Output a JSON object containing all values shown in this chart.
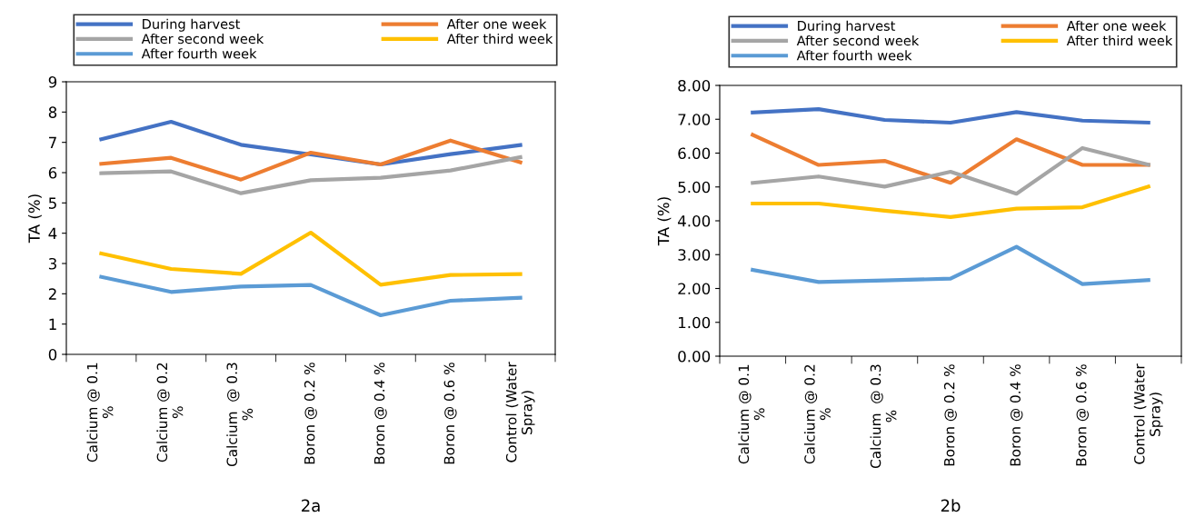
{
  "chart_data": [
    {
      "type": "line",
      "title": "2a",
      "ylabel": "TA (%)",
      "categories": [
        "Calcium @ 0.1\n%",
        "Calcium @ 0.2\n%",
        "Calcium  @ 0.3\n%",
        "Boron @ 0.2 %",
        "Boron @ 0.4 %",
        "Boron @ 0.6 %",
        "Control (Water\nSpray)"
      ],
      "ylim": [
        0,
        9
      ],
      "yticks": [
        0,
        1,
        2,
        3,
        4,
        5,
        6,
        7,
        8,
        9
      ],
      "grid": false,
      "legend": "top",
      "marker": "none",
      "line_style": "solid",
      "series": [
        {
          "name": "During harvest",
          "color": "#4472c4",
          "values": [
            7.1,
            7.68,
            6.92,
            6.6,
            6.27,
            6.61,
            6.91
          ]
        },
        {
          "name": "After one week",
          "color": "#ed7d31",
          "values": [
            6.29,
            6.49,
            5.77,
            6.66,
            6.27,
            7.06,
            6.34
          ]
        },
        {
          "name": "After second week",
          "color": "#a5a5a5",
          "values": [
            5.98,
            6.04,
            5.32,
            5.75,
            5.83,
            6.07,
            6.51
          ]
        },
        {
          "name": "After third week",
          "color": "#ffc000",
          "values": [
            3.33,
            2.82,
            2.66,
            4.02,
            2.3,
            2.62,
            2.65
          ]
        },
        {
          "name": "After fourth week",
          "color": "#5b9bd5",
          "values": [
            2.56,
            2.06,
            2.24,
            2.29,
            1.29,
            1.77,
            1.87
          ]
        }
      ]
    },
    {
      "type": "line",
      "title": "2b",
      "ylabel": "TA (%)",
      "categories": [
        "Calcium @ 0.1\n%",
        "Calcium @ 0.2\n%",
        "Calcium  @ 0.3\n%",
        "Boron @ 0.2 %",
        "Boron @ 0.4 %",
        "Boron @ 0.6 %",
        "Control (Water\nSpray)"
      ],
      "ylim": [
        0,
        8
      ],
      "yticks": [
        {
          "value": 0,
          "label": "0.00"
        },
        {
          "value": 1,
          "label": "1.00"
        },
        {
          "value": 2,
          "label": "2.00"
        },
        {
          "value": 3,
          "label": "3.00"
        },
        {
          "value": 4,
          "label": "4.00"
        },
        {
          "value": 5,
          "label": "5.00"
        },
        {
          "value": 6,
          "label": "6.00"
        },
        {
          "value": 7,
          "label": "7.00"
        },
        {
          "value": 8,
          "label": "8.00"
        }
      ],
      "grid": false,
      "legend": "top",
      "marker": "none",
      "line_style": "solid",
      "series": [
        {
          "name": "During harvest",
          "color": "#4472c4",
          "values": [
            7.2,
            7.3,
            6.98,
            6.9,
            7.21,
            6.96,
            6.9
          ]
        },
        {
          "name": "After one week",
          "color": "#ed7d31",
          "values": [
            6.54,
            5.65,
            5.77,
            5.12,
            6.41,
            5.65,
            5.65
          ]
        },
        {
          "name": "After second week",
          "color": "#a5a5a5",
          "values": [
            5.12,
            5.31,
            5.01,
            5.45,
            4.8,
            6.15,
            5.66
          ]
        },
        {
          "name": "After third week",
          "color": "#ffc000",
          "values": [
            4.51,
            4.51,
            4.3,
            4.11,
            4.36,
            4.4,
            5.01
          ]
        },
        {
          "name": "After fourth week",
          "color": "#5b9bd5",
          "values": [
            2.55,
            2.19,
            2.24,
            2.29,
            3.23,
            2.13,
            2.25
          ]
        }
      ]
    }
  ]
}
